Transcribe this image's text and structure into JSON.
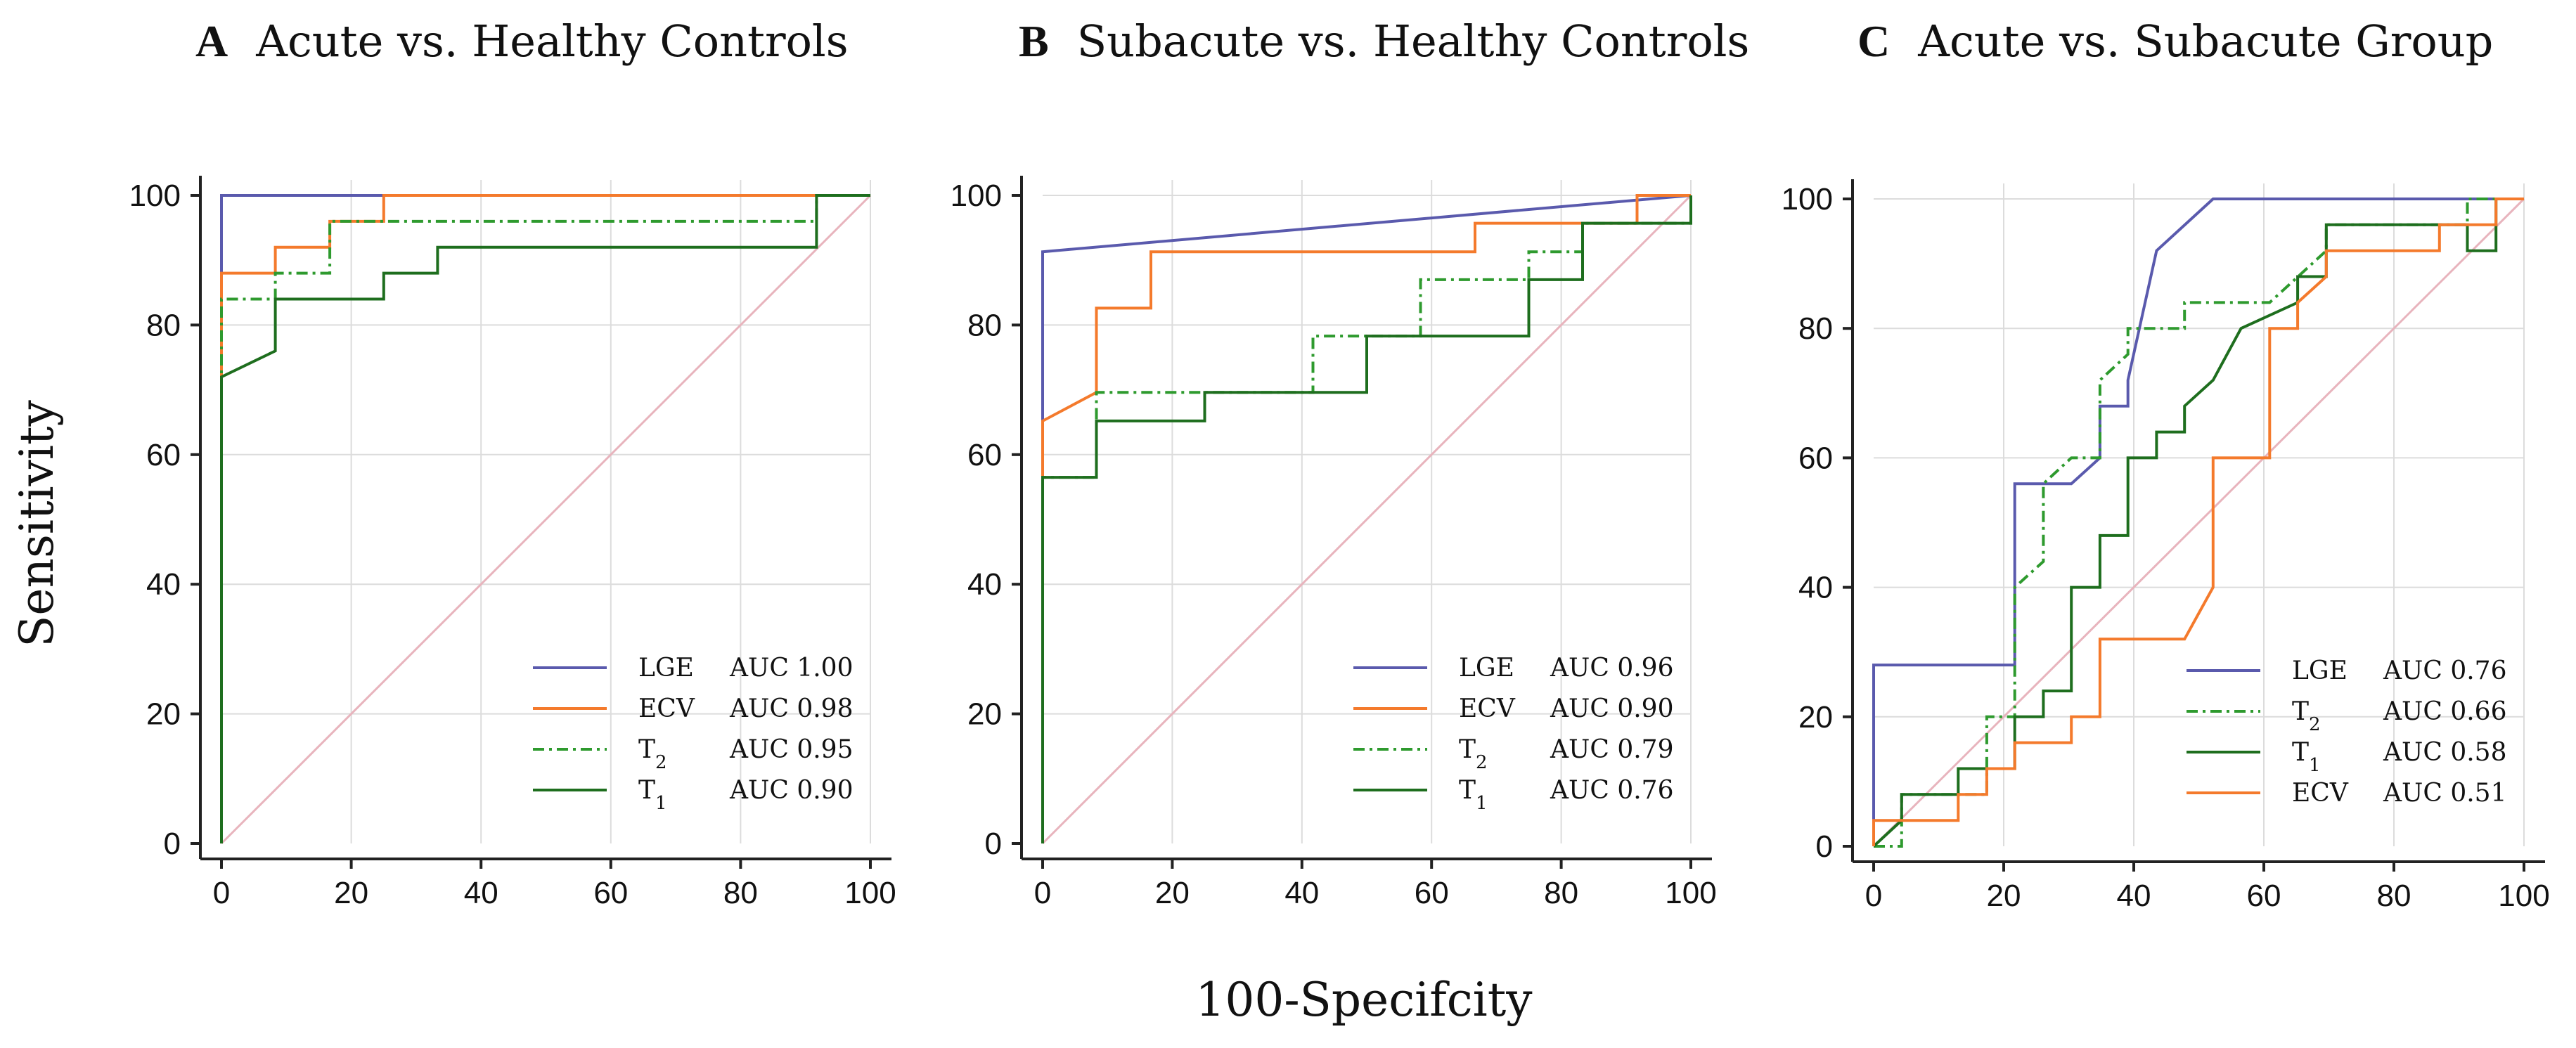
{
  "figure": {
    "y_axis_label": "Sensitivity",
    "x_axis_label": "100-Specifcity"
  },
  "chart_data": [
    {
      "type": "line",
      "letter": "A",
      "title": "Acute vs. Healthy Controls",
      "xlabel": "100-Specifcity",
      "ylabel": "Sensitivity",
      "xlim": [
        0,
        100
      ],
      "ylim": [
        0,
        100
      ],
      "ticks": [
        0,
        20,
        40,
        60,
        80,
        100
      ],
      "grid": true,
      "diagonal": true,
      "legend_position": "bottom-right",
      "series": [
        {
          "name": "LGE",
          "sub": "",
          "auc": "AUC 1.00",
          "color": "#5a5aad",
          "dash": "",
          "x": [
            0,
            0,
            25,
            100
          ],
          "y": [
            0,
            100,
            100,
            100
          ]
        },
        {
          "name": "ECV",
          "sub": "",
          "auc": "AUC 0.98",
          "color": "#f47a2c",
          "dash": "",
          "x": [
            0,
            0,
            8.3,
            8.3,
            16.7,
            16.7,
            25,
            25,
            100
          ],
          "y": [
            0,
            88,
            88,
            92,
            92,
            96,
            96,
            100,
            100
          ]
        },
        {
          "name": "T",
          "sub": "2",
          "auc": "AUC 0.95",
          "color": "#2e9a2e",
          "dash": "16,7,4,7",
          "x": [
            0,
            0,
            8.3,
            8.3,
            16.7,
            16.7,
            91.7,
            91.7,
            100
          ],
          "y": [
            0,
            84,
            84,
            88,
            88,
            96,
            96,
            100,
            100
          ]
        },
        {
          "name": "T",
          "sub": "1",
          "auc": "AUC 0.90",
          "color": "#1e6e1e",
          "dash": "",
          "x": [
            0,
            0,
            8.3,
            8.3,
            25,
            25,
            33.3,
            33.3,
            91.7,
            91.7,
            100
          ],
          "y": [
            0,
            72,
            76,
            84,
            84,
            88,
            88,
            92,
            92,
            100,
            100
          ]
        }
      ]
    },
    {
      "type": "line",
      "letter": "B",
      "title": "Subacute vs. Healthy Controls",
      "xlabel": "100-Specifcity",
      "ylabel": "Sensitivity",
      "xlim": [
        0,
        100
      ],
      "ylim": [
        0,
        100
      ],
      "ticks": [
        0,
        20,
        40,
        60,
        80,
        100
      ],
      "grid": true,
      "diagonal": true,
      "legend_position": "bottom-right",
      "series": [
        {
          "name": "LGE",
          "sub": "",
          "auc": "AUC 0.96",
          "color": "#5a5aad",
          "dash": "",
          "x": [
            0,
            0,
            100
          ],
          "y": [
            0,
            91.3,
            100
          ]
        },
        {
          "name": "ECV",
          "sub": "",
          "auc": "AUC 0.90",
          "color": "#f47a2c",
          "dash": "",
          "x": [
            0,
            0,
            8.3,
            8.3,
            16.7,
            16.7,
            66.7,
            66.7,
            91.7,
            91.7,
            100
          ],
          "y": [
            0,
            65.2,
            69.6,
            82.6,
            82.6,
            91.3,
            91.3,
            95.7,
            95.7,
            100,
            100
          ]
        },
        {
          "name": "T",
          "sub": "2",
          "auc": "AUC 0.79",
          "color": "#2e9a2e",
          "dash": "16,7,4,7",
          "x": [
            0,
            0,
            8.3,
            8.3,
            41.7,
            41.7,
            58.3,
            58.3,
            75,
            75,
            83.3,
            83.3,
            100,
            100
          ],
          "y": [
            0,
            56.5,
            56.5,
            69.6,
            69.6,
            78.3,
            78.3,
            87,
            87,
            91.3,
            91.3,
            95.7,
            95.7,
            100
          ]
        },
        {
          "name": "T",
          "sub": "1",
          "auc": "AUC 0.76",
          "color": "#1e6e1e",
          "dash": "",
          "x": [
            0,
            0,
            8.3,
            8.3,
            25,
            25,
            50,
            50,
            75,
            75,
            83.3,
            83.3,
            100,
            100
          ],
          "y": [
            0,
            56.5,
            56.5,
            65.2,
            65.2,
            69.6,
            69.6,
            78.3,
            78.3,
            87,
            87,
            95.7,
            95.7,
            100
          ]
        }
      ]
    },
    {
      "type": "line",
      "letter": "C",
      "title": "Acute vs. Subacute Group",
      "xlabel": "100-Specifcity",
      "ylabel": "Sensitivity",
      "xlim": [
        0,
        100
      ],
      "ylim": [
        0,
        100
      ],
      "ticks": [
        0,
        20,
        40,
        60,
        80,
        100
      ],
      "grid": true,
      "diagonal": true,
      "legend_position": "bottom-right",
      "series": [
        {
          "name": "LGE",
          "sub": "",
          "auc": "AUC 0.76",
          "color": "#5a5aad",
          "dash": "",
          "x": [
            0,
            0,
            21.7,
            21.7,
            30.4,
            34.8,
            34.8,
            39.1,
            39.1,
            43.5,
            52.2,
            100
          ],
          "y": [
            0,
            28,
            28,
            56,
            56,
            60,
            68,
            68,
            72,
            92,
            100,
            100
          ]
        },
        {
          "name": "T",
          "sub": "2",
          "auc": "AUC 0.66",
          "color": "#2e9a2e",
          "dash": "16,7,4,7",
          "x": [
            0,
            4.3,
            4.3,
            17.4,
            17.4,
            21.7,
            21.7,
            26.1,
            26.1,
            30.4,
            34.8,
            34.8,
            39.1,
            39.1,
            47.8,
            47.8,
            60.9,
            69.6,
            69.6,
            91.3,
            91.3,
            100
          ],
          "y": [
            0,
            0,
            8,
            8,
            20,
            20,
            40,
            44,
            56,
            60,
            60,
            72,
            76,
            80,
            80,
            84,
            84,
            92,
            96,
            96,
            100,
            100
          ]
        },
        {
          "name": "T",
          "sub": "1",
          "auc": "AUC 0.58",
          "color": "#1e6e1e",
          "dash": "",
          "x": [
            0,
            4.3,
            4.3,
            13,
            13,
            21.7,
            21.7,
            26.1,
            26.1,
            30.4,
            30.4,
            34.8,
            34.8,
            39.1,
            39.1,
            43.5,
            43.5,
            47.8,
            47.8,
            52.2,
            52.2,
            56.5,
            56.5,
            65.2,
            65.2,
            69.6,
            69.6,
            91.3,
            91.3,
            95.7,
            95.7,
            100
          ],
          "y": [
            0,
            4,
            8,
            8,
            12,
            12,
            20,
            20,
            24,
            24,
            40,
            40,
            48,
            48,
            60,
            60,
            64,
            64,
            68,
            72,
            72,
            80,
            80,
            84,
            88,
            88,
            96,
            96,
            92,
            92,
            100,
            100
          ]
        },
        {
          "name": "ECV",
          "sub": "",
          "auc": "AUC 0.51",
          "color": "#f47a2c",
          "dash": "",
          "x": [
            0,
            0,
            4.3,
            13,
            13,
            17.4,
            17.4,
            21.7,
            21.7,
            30.4,
            30.4,
            34.8,
            34.8,
            47.8,
            50,
            52.2,
            52.2,
            56.5,
            60.9,
            60.9,
            65.2,
            65.2,
            69.6,
            69.6,
            87,
            87,
            95.7,
            95.7,
            100
          ],
          "y": [
            0,
            4,
            4,
            4,
            8,
            8,
            12,
            12,
            16,
            16,
            20,
            20,
            32,
            32,
            36,
            40,
            60,
            60,
            60,
            80,
            80,
            84,
            88,
            92,
            92,
            96,
            96,
            100,
            100
          ]
        }
      ]
    }
  ]
}
